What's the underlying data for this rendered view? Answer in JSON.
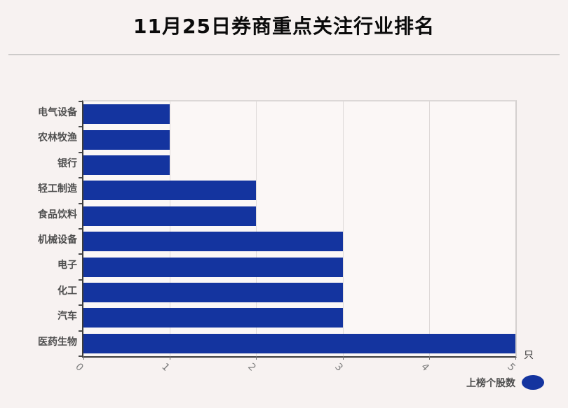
{
  "header": {
    "title": "11月25日券商重点关注行业排名"
  },
  "chart_data": {
    "type": "bar",
    "orientation": "horizontal",
    "title": "11月25日券商重点关注行业排名",
    "categories": [
      "电气设备",
      "农林牧渔",
      "银行",
      "轻工制造",
      "食品饮料",
      "机械设备",
      "电子",
      "化工",
      "汽车",
      "医药生物"
    ],
    "values": [
      1,
      1,
      1,
      2,
      2,
      3,
      3,
      3,
      3,
      5
    ],
    "series": [
      {
        "name": "上榜个股数",
        "values": [
          1,
          1,
          1,
          2,
          2,
          3,
          3,
          3,
          3,
          5
        ]
      }
    ],
    "xlim": [
      0,
      5
    ],
    "x_ticks": [
      "0",
      "1",
      "2",
      "3",
      "4",
      "5"
    ],
    "x_tick_rotation_deg": 45,
    "x_unit": "只",
    "xlabel": "",
    "ylabel": "",
    "grid": "vertical-on",
    "legend_position": "bottom-right",
    "bar_color": "#14349f"
  },
  "legend": {
    "label": "上榜个股数",
    "marker_color": "#14349f"
  },
  "colors": {
    "page_background": "#f7f2f1",
    "plot_background": "#fbf7f6",
    "gridline": "#ded9d8",
    "dark_spine": "#3d3d3d",
    "light_spine": "#dcd8d7",
    "title_text": "#0b0b0b",
    "category_text": "#4f4f4f",
    "tick_text": "#7d7d7d"
  }
}
